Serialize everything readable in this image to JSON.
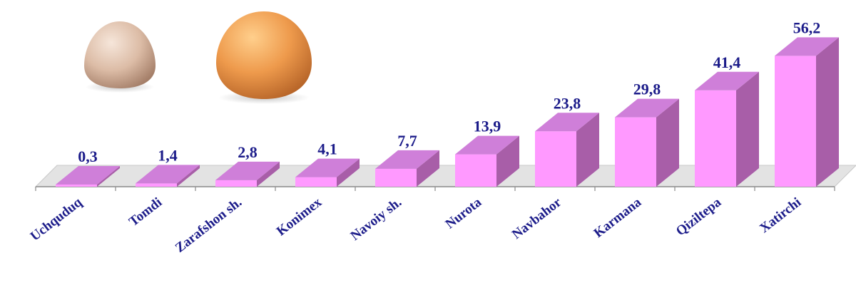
{
  "chart_data": {
    "type": "bar",
    "categories": [
      "Uchquduq",
      "Tomdi",
      "Zarafshon sh.",
      "Konimex",
      "Navoiy sh.",
      "Nurota",
      "Navbahor",
      "Karmana",
      "Qiziltepa",
      "Xatirchi"
    ],
    "values": [
      "0,3",
      "1,4",
      "2,8",
      "4,1",
      "7,7",
      "13,9",
      "23,8",
      "29,8",
      "41,4",
      "56,2"
    ],
    "title": "",
    "xlabel": "",
    "ylabel": "",
    "ylim": [
      0,
      60
    ],
    "grid": false,
    "three_d": true,
    "colors": {
      "bar_front": "#ff99ff",
      "bar_side": "#a85ea8",
      "bar_top": "#cf7fd9",
      "floor": "#e3e3e3",
      "label": "#1c1c8a"
    }
  },
  "decorations": {
    "images": [
      "small-brown-egg",
      "large-orange-egg"
    ]
  }
}
